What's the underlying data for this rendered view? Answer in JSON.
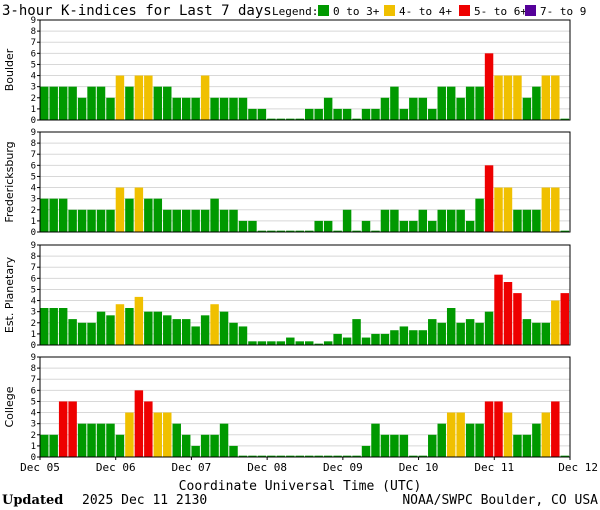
{
  "chart_data": {
    "type": "bar",
    "title": "3-hour K-indices for Last 7 days",
    "legend": {
      "label": "Legend:",
      "items": [
        {
          "label": "0 to 3+",
          "color": "#009900"
        },
        {
          "label": "4- to 4+",
          "color": "#f0c000"
        },
        {
          "label": "5- to 6+",
          "color": "#ee0000"
        },
        {
          "label": "7- to 9",
          "color": "#550099"
        }
      ]
    },
    "x_tick_labels": [
      "Dec 05",
      "Dec 06",
      "Dec 07",
      "Dec 08",
      "Dec 09",
      "Dec 10",
      "Dec 11",
      "Dec 12"
    ],
    "xlabel": "Coordinate Universal Time (UTC)",
    "ylim": [
      0,
      9
    ],
    "y_tick_labels": [
      "0",
      "1",
      "2",
      "3",
      "4",
      "5",
      "6",
      "7",
      "8",
      "9"
    ],
    "bars_per_day": 8,
    "panels": [
      {
        "ylabel": "Boulder",
        "values": [
          3,
          3,
          3,
          3,
          2,
          3,
          3,
          2,
          4,
          3,
          4,
          4,
          3,
          3,
          2,
          2,
          2,
          4,
          2,
          2,
          2,
          2,
          1,
          1,
          0,
          0,
          0,
          0,
          1,
          1,
          2,
          1,
          1,
          0,
          1,
          1,
          2,
          3,
          1,
          2,
          2,
          1,
          3,
          3,
          2,
          3,
          3,
          6,
          4,
          4,
          4,
          2,
          3,
          4,
          4,
          0
        ]
      },
      {
        "ylabel": "Fredericksburg",
        "values": [
          3,
          3,
          3,
          2,
          2,
          2,
          2,
          2,
          4,
          3,
          4,
          3,
          3,
          2,
          2,
          2,
          2,
          2,
          3,
          2,
          2,
          1,
          1,
          0,
          0,
          0,
          0,
          0,
          0,
          1,
          1,
          0,
          2,
          0,
          1,
          0,
          2,
          2,
          1,
          1,
          2,
          1,
          2,
          2,
          2,
          1,
          3,
          6,
          4,
          4,
          2,
          2,
          2,
          4,
          4,
          0
        ]
      },
      {
        "ylabel": "Est. Planetary",
        "values": [
          3.33,
          3.33,
          3.33,
          2.33,
          2,
          2,
          3,
          2.67,
          3.67,
          3.33,
          4.33,
          3,
          3,
          2.67,
          2.33,
          2.33,
          1.67,
          2.67,
          3.67,
          3,
          2,
          1.67,
          0.33,
          0.33,
          0.33,
          0.33,
          0.67,
          0.33,
          0.33,
          0,
          0.33,
          1,
          0.67,
          2.33,
          0.67,
          1,
          1,
          1.33,
          1.67,
          1.33,
          1.33,
          2.33,
          2,
          3.33,
          2,
          2.33,
          2,
          3,
          6.33,
          5.67,
          4.67,
          2.33,
          2,
          2,
          4,
          4.67
        ]
      },
      {
        "ylabel": "College",
        "values": [
          2,
          2,
          5,
          5,
          3,
          3,
          3,
          3,
          2,
          4,
          6,
          5,
          4,
          4,
          3,
          2,
          1,
          2,
          2,
          3,
          1,
          0,
          0,
          0,
          0,
          0,
          0,
          0,
          0,
          0,
          0,
          0,
          0,
          0,
          1,
          3,
          2,
          2,
          2,
          0,
          0,
          2,
          3,
          4,
          4,
          3,
          3,
          5,
          5,
          4,
          2,
          2,
          3,
          4,
          5,
          0
        ]
      }
    ]
  },
  "footer": {
    "updated_label": "Updated",
    "updated_value": "2025 Dec 11 2130",
    "source": "NOAA/SWPC Boulder, CO USA"
  }
}
